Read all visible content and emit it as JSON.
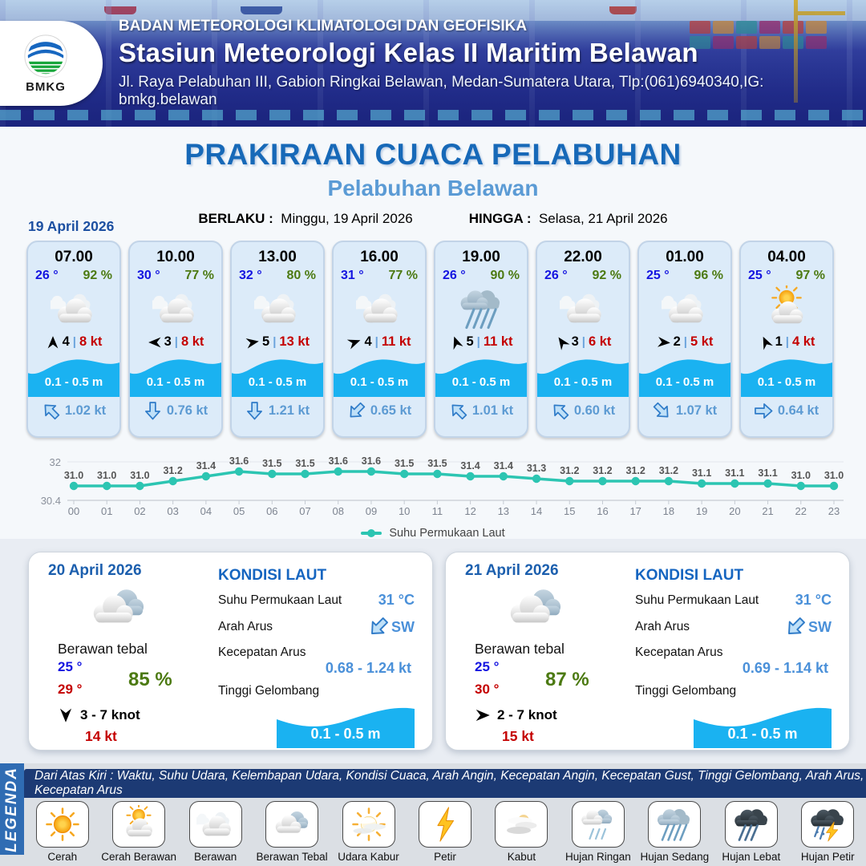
{
  "header": {
    "org": "BADAN METEOROLOGI KLIMATOLOGI DAN GEOFISIKA",
    "station": "Stasiun Meteorologi Kelas II Maritim Belawan",
    "address": "Jl. Raya Pelabuhan III, Gabion Ringkai Belawan, Medan-Sumatera Utara, Tlp:(061)6940340,IG: bmkg.belawan",
    "logo_text": "BMKG"
  },
  "title": {
    "main": "PRAKIRAAN CUACA PELABUHAN",
    "subtitle": "Pelabuhan Belawan",
    "berlaku_label": "BERLAKU :",
    "berlaku_value": "Minggu, 19 April 2026",
    "hingga_label": "HINGGA :",
    "hingga_value": "Selasa, 21 April 2026"
  },
  "forecast_date": "19 April 2026",
  "misc": {
    "wind_sep": "|"
  },
  "cards": [
    {
      "time": "07.00",
      "temp": "26 °",
      "humidity": "92 %",
      "icon": "berawan",
      "wind_deg": 0,
      "wind_bft": "4",
      "gust": "8 kt",
      "wave": "0.1 - 0.5 m",
      "current_deg": 315,
      "current": "1.02 kt"
    },
    {
      "time": "10.00",
      "temp": "30 °",
      "humidity": "77 %",
      "icon": "berawan",
      "wind_deg": 270,
      "wind_bft": "3",
      "gust": "8 kt",
      "wave": "0.1 - 0.5 m",
      "current_deg": 180,
      "current": "0.76 kt"
    },
    {
      "time": "13.00",
      "temp": "32 °",
      "humidity": "80 %",
      "icon": "berawan",
      "wind_deg": 80,
      "wind_bft": "5",
      "gust": "13 kt",
      "wave": "0.1 - 0.5 m",
      "current_deg": 180,
      "current": "1.21 kt"
    },
    {
      "time": "16.00",
      "temp": "31 °",
      "humidity": "77 %",
      "icon": "berawan",
      "wind_deg": 70,
      "wind_bft": "4",
      "gust": "11 kt",
      "wave": "0.1 - 0.5 m",
      "current_deg": 225,
      "current": "0.65 kt"
    },
    {
      "time": "19.00",
      "temp": "26 °",
      "humidity": "90 %",
      "icon": "hujan-sedang",
      "wind_deg": 340,
      "wind_bft": "5",
      "gust": "11 kt",
      "wave": "0.1 - 0.5 m",
      "current_deg": 315,
      "current": "1.01 kt"
    },
    {
      "time": "22.00",
      "temp": "26 °",
      "humidity": "92 %",
      "icon": "berawan",
      "wind_deg": 325,
      "wind_bft": "3",
      "gust": "6 kt",
      "wave": "0.1 - 0.5 m",
      "current_deg": 315,
      "current": "0.60 kt"
    },
    {
      "time": "01.00",
      "temp": "25 °",
      "humidity": "96 %",
      "icon": "berawan",
      "wind_deg": 95,
      "wind_bft": "2",
      "gust": "5 kt",
      "wave": "0.1 - 0.5 m",
      "current_deg": 135,
      "current": "1.07 kt"
    },
    {
      "time": "04.00",
      "temp": "25 °",
      "humidity": "97 %",
      "icon": "cerah-berawan",
      "wind_deg": 335,
      "wind_bft": "1",
      "gust": "4 kt",
      "wave": "0.1 - 0.5 m",
      "current_deg": 90,
      "current": "0.64 kt"
    }
  ],
  "chart_data": {
    "type": "line",
    "x": [
      "00",
      "01",
      "02",
      "03",
      "04",
      "05",
      "06",
      "07",
      "08",
      "09",
      "10",
      "11",
      "12",
      "13",
      "14",
      "15",
      "16",
      "17",
      "18",
      "19",
      "20",
      "21",
      "22",
      "23"
    ],
    "series": [
      {
        "name": "Suhu Permukaan Laut",
        "values": [
          31.0,
          31.0,
          31.0,
          31.2,
          31.4,
          31.6,
          31.5,
          31.5,
          31.6,
          31.6,
          31.5,
          31.5,
          31.4,
          31.4,
          31.3,
          31.2,
          31.2,
          31.2,
          31.2,
          31.1,
          31.1,
          31.1,
          31.0,
          31.0
        ]
      }
    ],
    "ylim": [
      30.4,
      32
    ],
    "yticks": [
      30.4,
      32
    ],
    "line_color": "#2cc5b2",
    "grid": true,
    "legend_position": "bottom"
  },
  "daily": [
    {
      "date": "20 April 2026",
      "icon": "berawan-tebal",
      "condition": "Berawan tebal",
      "temp_min": "25 °",
      "temp_max": "29 °",
      "humidity": "85 %",
      "wind_deg": 180,
      "wind_range": "3  - 7 knot",
      "gust": "14 kt",
      "sea": {
        "title": "KONDISI LAUT",
        "sst_label": "Suhu Permukaan Laut",
        "sst_value": "31 °C",
        "dir_label": "Arah Arus",
        "dir_value": "SW",
        "dir_deg": 225,
        "speed_label": "Kecepatan Arus",
        "speed_value": "0.68 - 1.24 kt",
        "wave_label": "Tinggi Gelombang",
        "wave_value": "0.1 - 0.5 m"
      }
    },
    {
      "date": "21 April 2026",
      "icon": "berawan-tebal",
      "condition": "Berawan tebal",
      "temp_min": "25 °",
      "temp_max": "30 °",
      "humidity": "87 %",
      "wind_deg": 90,
      "wind_range": "2  - 7 knot",
      "gust": "15 kt",
      "sea": {
        "title": "KONDISI LAUT",
        "sst_label": "Suhu Permukaan Laut",
        "sst_value": "31 °C",
        "dir_label": "Arah Arus",
        "dir_value": "SW",
        "dir_deg": 225,
        "speed_label": "Kecepatan Arus",
        "speed_value": "0.69  - 1.14 kt",
        "wave_label": "Tinggi Gelombang",
        "wave_value": "0.1 - 0.5 m"
      }
    }
  ],
  "legend": {
    "title": "LEGENDA",
    "note": "Dari Atas Kiri : Waktu, Suhu Udara, Kelembapan Udara, Kondisi Cuaca, Arah Angin, Kecepatan Angin, Kecepatan Gust, Tinggi Gelombang, Arah Arus, Kecepatan Arus",
    "items": [
      {
        "label": "Cerah",
        "icon": "cerah"
      },
      {
        "label": "Cerah Berawan",
        "icon": "cerah-berawan"
      },
      {
        "label": "Berawan",
        "icon": "berawan"
      },
      {
        "label": "Berawan Tebal",
        "icon": "berawan-tebal"
      },
      {
        "label": "Udara Kabur",
        "icon": "udara-kabur"
      },
      {
        "label": "Petir",
        "icon": "petir"
      },
      {
        "label": "Kabut",
        "icon": "kabut"
      },
      {
        "label": "Hujan Ringan",
        "icon": "hujan-ringan"
      },
      {
        "label": "Hujan Sedang",
        "icon": "hujan-sedang"
      },
      {
        "label": "Hujan Lebat",
        "icon": "hujan-lebat"
      },
      {
        "label": "Hujan Petir",
        "icon": "hujan-petir"
      }
    ]
  },
  "colors": {
    "temp_blue": "#1414e0",
    "humidity_green": "#4c7a12",
    "gust_red": "#c40000",
    "wave_blue": "#1ab2f1",
    "current_blue": "#5d9bd3",
    "title_blue": "#1769b8",
    "subtitle_blue": "#5b9bd5",
    "chart_line_teal": "#2cc5b2"
  }
}
